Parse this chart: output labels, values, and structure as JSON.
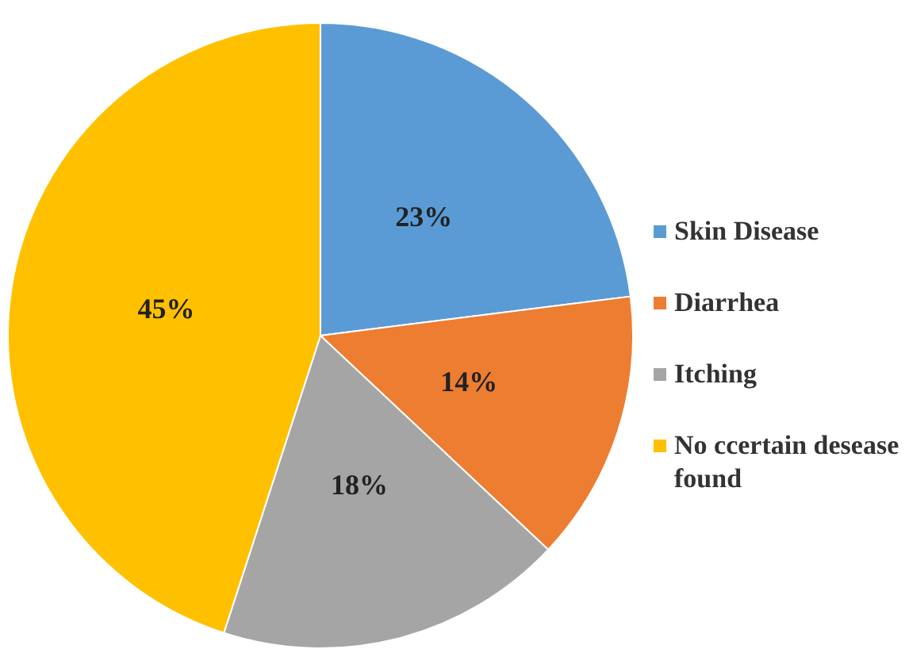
{
  "chart_data": {
    "type": "pie",
    "categories": [
      "Skin Disease",
      "Diarrhea",
      "Itching",
      "No ccertain desease found"
    ],
    "values": [
      23,
      14,
      18,
      45
    ],
    "colors": [
      "#5b9bd5",
      "#ed7d31",
      "#a5a5a5",
      "#ffc000"
    ],
    "value_labels": [
      "23%",
      "14%",
      "18%",
      "45%"
    ],
    "legend": "right"
  }
}
